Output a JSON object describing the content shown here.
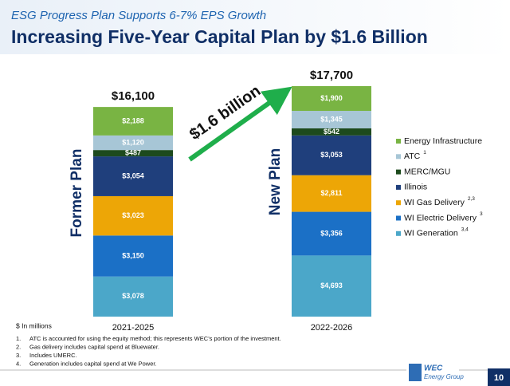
{
  "header": {
    "supertitle": "ESG Progress Plan Supports 6-7% EPS Growth",
    "title": "Increasing Five-Year Capital Plan by $1.6 Billion"
  },
  "chart_data": {
    "type": "stacked_bar",
    "categories": [
      "2021-2025",
      "2022-2026"
    ],
    "category_titles": [
      "Former Plan",
      "New Plan"
    ],
    "series": [
      {
        "name": "WI Generation",
        "note": "3,4",
        "color": "#4ba7c9",
        "values": [
          3078,
          4693
        ],
        "value_labels": [
          "$3,078",
          "$4,693"
        ]
      },
      {
        "name": "WI Electric Delivery",
        "note": "3",
        "color": "#1b70c6",
        "values": [
          3150,
          3356
        ],
        "value_labels": [
          "$3,150",
          "$3,356"
        ]
      },
      {
        "name": "WI Gas Delivery",
        "note": "2,3",
        "color": "#eda606",
        "values": [
          3023,
          2811
        ],
        "value_labels": [
          "$3,023",
          "$2,811"
        ]
      },
      {
        "name": "Illinois",
        "color": "#1f3f7c",
        "values": [
          3054,
          3053
        ],
        "value_labels": [
          "$3,054",
          "$3,053"
        ]
      },
      {
        "name": "MERC/MGU",
        "color": "#1d4a1d",
        "values": [
          487,
          542
        ],
        "value_labels": [
          "$487",
          "$542"
        ]
      },
      {
        "name": "ATC",
        "note": "1",
        "color": "#a7c6d6",
        "values": [
          1120,
          1345
        ],
        "value_labels": [
          "$1,120",
          "$1,345"
        ]
      },
      {
        "name": "Energy Infrastructure",
        "color": "#79b443",
        "values": [
          2188,
          1900
        ],
        "value_labels": [
          "$2,188",
          "$1,900"
        ]
      }
    ],
    "totals": {
      "values": [
        16100,
        17700
      ],
      "value_labels": [
        "$16,100",
        "$17,700"
      ]
    },
    "annotation": "$1.6 billion",
    "unit_note": "$ In millions"
  },
  "footnotes": [
    {
      "number": "1.",
      "text": "ATC is accounted for using the equity method; this represents WEC’s portion of the investment."
    },
    {
      "number": "2.",
      "text": "Gas delivery includes capital spend at Bluewater."
    },
    {
      "number": "3.",
      "text": "Includes UMERC."
    },
    {
      "number": "4.",
      "text": "Generation includes capital spend at We Power."
    }
  ],
  "footer": {
    "logo_line1": "WEC",
    "logo_line2": "Energy Group",
    "page_number": "10"
  }
}
